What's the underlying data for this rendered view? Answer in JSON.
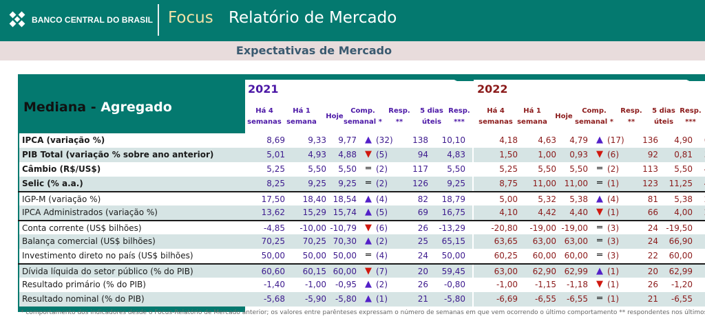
{
  "header": {
    "logo_text": "BANCO CENTRAL DO BRASIL",
    "focus": "Focus",
    "report_title": "Relatório de Mercado"
  },
  "subtitle": "Expectativas de Mercado",
  "table_title": {
    "part1": "Mediana - ",
    "part2": "Agregado"
  },
  "years": [
    "2021",
    "2022"
  ],
  "column_headers": [
    "Há 4\nsemanas",
    "Há 1\nsemana",
    "Hoje",
    "Comp.\nsemanal *",
    "Resp.\n**",
    "5 dias\núteis",
    "Resp.\n***"
  ],
  "colors": {
    "teal": "#04796f",
    "purple": "#4b17a6",
    "dark_red": "#8b1a1a",
    "up_arrow": "#5320c8",
    "down_arrow": "#d0180f"
  },
  "rows": [
    {
      "label": "IPCA (variação %)",
      "bold": true,
      "y2021": {
        "h4": "8,69",
        "h1": "9,33",
        "hoje": "9,77",
        "trend": "up",
        "n": "(32)",
        "resp": "138",
        "d5": "10,10",
        "resp3": "68"
      },
      "y2022": {
        "h4": "4,18",
        "h1": "4,63",
        "hoje": "4,79",
        "trend": "up",
        "n": "(17)",
        "resp": "136",
        "d5": "4,90",
        "resp3": "67"
      }
    },
    {
      "label": "PIB Total (variação % sobre ano anterior)",
      "bold": true,
      "y2021": {
        "h4": "5,01",
        "h1": "4,93",
        "hoje": "4,88",
        "trend": "down",
        "n": "(5)",
        "resp": "94",
        "d5": "4,83",
        "resp3": "35"
      },
      "y2022": {
        "h4": "1,50",
        "h1": "1,00",
        "hoje": "0,93",
        "trend": "down",
        "n": "(6)",
        "resp": "92",
        "d5": "0,81",
        "resp3": "35"
      }
    },
    {
      "label": "Câmbio (R$/US$)",
      "bold": true,
      "y2021": {
        "h4": "5,25",
        "h1": "5,50",
        "hoje": "5,50",
        "trend": "eq",
        "n": "(2)",
        "resp": "117",
        "d5": "5,50",
        "resp3": "50"
      },
      "y2022": {
        "h4": "5,25",
        "h1": "5,50",
        "hoje": "5,50",
        "trend": "eq",
        "n": "(2)",
        "resp": "113",
        "d5": "5,50",
        "resp3": "49"
      }
    },
    {
      "label": "Selic (% a.a.)",
      "bold": true,
      "y2021": {
        "h4": "8,25",
        "h1": "9,25",
        "hoje": "9,25",
        "trend": "eq",
        "n": "(2)",
        "resp": "126",
        "d5": "9,25",
        "resp3": "49"
      },
      "y2022": {
        "h4": "8,75",
        "h1": "11,00",
        "hoje": "11,00",
        "trend": "eq",
        "n": "(1)",
        "resp": "123",
        "d5": "11,25",
        "resp3": "48"
      }
    },
    {
      "label": "IGP-M (variação %)",
      "bold": false,
      "sep": true,
      "y2021": {
        "h4": "17,50",
        "h1": "18,40",
        "hoje": "18,54",
        "trend": "up",
        "n": "(4)",
        "resp": "82",
        "d5": "18,79",
        "resp3": "28"
      },
      "y2022": {
        "h4": "5,00",
        "h1": "5,32",
        "hoje": "5,38",
        "trend": "up",
        "n": "(4)",
        "resp": "81",
        "d5": "5,38",
        "resp3": "28"
      }
    },
    {
      "label": "IPCA Administrados (variação %)",
      "bold": false,
      "y2021": {
        "h4": "13,62",
        "h1": "15,29",
        "hoje": "15,74",
        "trend": "up",
        "n": "(5)",
        "resp": "69",
        "d5": "16,75",
        "resp3": "21"
      },
      "y2022": {
        "h4": "4,10",
        "h1": "4,42",
        "hoje": "4,40",
        "trend": "down",
        "n": "(1)",
        "resp": "66",
        "d5": "4,00",
        "resp3": "21"
      }
    },
    {
      "label": "Conta corrente (US$ bilhões)",
      "bold": false,
      "sep": true,
      "y2021": {
        "h4": "-4,85",
        "h1": "-10,00",
        "hoje": "-10,79",
        "trend": "down",
        "n": "(6)",
        "resp": "26",
        "d5": "-13,29",
        "resp3": "8"
      },
      "y2022": {
        "h4": "-20,80",
        "h1": "-19,00",
        "hoje": "-19,00",
        "trend": "eq",
        "n": "(3)",
        "resp": "24",
        "d5": "-19,50",
        "resp3": "8"
      }
    },
    {
      "label": "Balança comercial (US$ bilhões)",
      "bold": false,
      "y2021": {
        "h4": "70,25",
        "h1": "70,25",
        "hoje": "70,30",
        "trend": "up",
        "n": "(2)",
        "resp": "25",
        "d5": "65,15",
        "resp3": "6"
      },
      "y2022": {
        "h4": "63,65",
        "h1": "63,00",
        "hoje": "63,00",
        "trend": "eq",
        "n": "(3)",
        "resp": "24",
        "d5": "66,90",
        "resp3": "6"
      }
    },
    {
      "label": "Investimento direto no país (US$ bilhões)",
      "bold": false,
      "y2021": {
        "h4": "50,00",
        "h1": "50,00",
        "hoje": "50,00",
        "trend": "eq",
        "n": "(4)",
        "resp": "24",
        "d5": "50,00",
        "resp3": "8"
      },
      "y2022": {
        "h4": "60,25",
        "h1": "60,00",
        "hoje": "60,00",
        "trend": "eq",
        "n": "(3)",
        "resp": "22",
        "d5": "60,00",
        "resp3": "8"
      }
    },
    {
      "label": "Dívida líquida do setor público (% do PIB)",
      "bold": false,
      "sep": true,
      "y2021": {
        "h4": "60,60",
        "h1": "60,15",
        "hoje": "60,00",
        "trend": "down",
        "n": "(7)",
        "resp": "20",
        "d5": "59,45",
        "resp3": "6"
      },
      "y2022": {
        "h4": "63,00",
        "h1": "62,90",
        "hoje": "62,99",
        "trend": "up",
        "n": "(1)",
        "resp": "20",
        "d5": "62,99",
        "resp3": "6"
      }
    },
    {
      "label": "Resultado primário (% do PIB)",
      "bold": false,
      "y2021": {
        "h4": "-1,40",
        "h1": "-1,00",
        "hoje": "-0,95",
        "trend": "up",
        "n": "(2)",
        "resp": "26",
        "d5": "-0,80",
        "resp3": "9"
      },
      "y2022": {
        "h4": "-1,00",
        "h1": "-1,15",
        "hoje": "-1,18",
        "trend": "down",
        "n": "(1)",
        "resp": "26",
        "d5": "-1,20",
        "resp3": "9"
      }
    },
    {
      "label": "Resultado nominal (% do PIB)",
      "bold": false,
      "y2021": {
        "h4": "-5,68",
        "h1": "-5,90",
        "hoje": "-5,80",
        "trend": "up",
        "n": "(1)",
        "resp": "21",
        "d5": "-5,80",
        "resp3": "7"
      },
      "y2022": {
        "h4": "-6,69",
        "h1": "-6,55",
        "hoje": "-6,55",
        "trend": "eq",
        "n": "(1)",
        "resp": "21",
        "d5": "-6,55",
        "resp3": "7"
      }
    }
  ],
  "footnote": "* comportamento dos indicadores desde o Focus-Relatório de Mercado anterior; os valores entre parênteses expressam o número de semanas em que vem ocorrendo o último comportamento ** respondentes nos últimos 30 dias *** respondentes nos últimos 5 dias úteis"
}
